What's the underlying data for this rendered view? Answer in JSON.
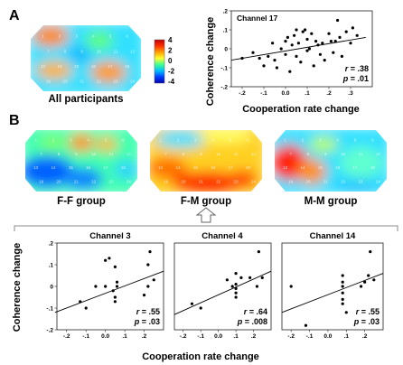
{
  "panels": {
    "a": {
      "letter": "A",
      "map_caption": "All participants",
      "map_channels": [
        "1",
        "2",
        "3",
        "4",
        "5",
        "6",
        "7",
        "8",
        "9",
        "10",
        "11",
        "12",
        "13",
        "14",
        "15",
        "16",
        "17",
        "18",
        "19",
        "20",
        "21",
        "22",
        "23",
        "24"
      ]
    },
    "b": {
      "letter": "B",
      "maps": [
        {
          "caption": "F-F group"
        },
        {
          "caption": "F-M group"
        },
        {
          "caption": "M-M group"
        }
      ],
      "bottom_labels": {
        "ylabel": "Coherence change",
        "xlabel": "Cooperation rate change"
      }
    }
  },
  "colorbar": {
    "ticks": [
      "4",
      "2",
      "0",
      "-2",
      "-4"
    ],
    "colors": [
      "#c00000",
      "#ff3000",
      "#ffa000",
      "#ffff30",
      "#40ff90",
      "#00c0ff",
      "#0040ff",
      "#0000b0"
    ]
  },
  "map_channel_labels": [
    "1",
    "2",
    "3",
    "4",
    "5",
    "6",
    "7",
    "8",
    "9",
    "10",
    "11",
    "12",
    "13",
    "14",
    "15",
    "16",
    "17",
    "18",
    "19",
    "20",
    "21",
    "22",
    "23",
    "24"
  ],
  "chart_data": [
    {
      "type": "scatter",
      "title": "Channel 17",
      "xlabel": "Cooperation rate change",
      "ylabel": "Coherence change",
      "xlim": [
        -0.25,
        0.4
      ],
      "ylim": [
        -0.2,
        0.2
      ],
      "xticks": [
        -0.2,
        -0.1,
        0.0,
        0.1,
        0.2,
        0.3
      ],
      "xtick_labels": [
        "-.2",
        "-.1",
        "0.0",
        ".1",
        ".2",
        ".3"
      ],
      "yticks": [
        -0.2,
        -0.1,
        0.0,
        0.1,
        0.2
      ],
      "ytick_labels": [
        "-.2",
        "-.1",
        "0",
        ".1",
        ".2"
      ],
      "points": [
        [
          -0.2,
          -0.05
        ],
        [
          -0.15,
          -0.02
        ],
        [
          -0.12,
          -0.05
        ],
        [
          -0.1,
          -0.09
        ],
        [
          -0.08,
          -0.04
        ],
        [
          -0.05,
          -0.06
        ],
        [
          -0.04,
          -0.1
        ],
        [
          -0.02,
          0.0
        ],
        [
          0.0,
          0.04
        ],
        [
          0.0,
          -0.03
        ],
        [
          0.01,
          0.06
        ],
        [
          0.02,
          -0.12
        ],
        [
          0.03,
          0.02
        ],
        [
          0.04,
          0.07
        ],
        [
          0.05,
          -0.04
        ],
        [
          0.06,
          0.03
        ],
        [
          0.07,
          -0.07
        ],
        [
          0.08,
          0.09
        ],
        [
          0.09,
          0.1
        ],
        [
          0.1,
          -0.01
        ],
        [
          0.1,
          0.05
        ],
        [
          0.11,
          0.0
        ],
        [
          0.12,
          0.08
        ],
        [
          0.13,
          -0.09
        ],
        [
          0.14,
          0.04
        ],
        [
          0.15,
          0.02
        ],
        [
          0.16,
          -0.03
        ],
        [
          0.17,
          0.03
        ],
        [
          0.18,
          -0.06
        ],
        [
          0.2,
          0.08
        ],
        [
          0.21,
          0.04
        ],
        [
          0.22,
          -0.02
        ],
        [
          0.23,
          0.04
        ],
        [
          0.24,
          0.15
        ],
        [
          0.25,
          0.06
        ],
        [
          0.26,
          -0.04
        ],
        [
          0.28,
          0.09
        ],
        [
          0.3,
          0.03
        ],
        [
          0.31,
          0.11
        ],
        [
          0.33,
          0.07
        ],
        [
          -0.06,
          0.03
        ],
        [
          0.05,
          0.1
        ]
      ],
      "fit_line": [
        [
          -0.25,
          -0.06
        ],
        [
          0.37,
          0.06
        ]
      ],
      "stats": {
        "r": ".38",
        "p": ".01"
      }
    },
    {
      "type": "scatter",
      "title": "Channel 3",
      "xlim": [
        -0.25,
        0.3
      ],
      "ylim": [
        -0.2,
        0.2
      ],
      "xticks": [
        -0.2,
        -0.1,
        0.0,
        0.1,
        0.2
      ],
      "xtick_labels": [
        "-.2",
        "-.1",
        "0.0",
        ".1",
        ".2"
      ],
      "yticks": [
        -0.2,
        -0.1,
        0.0,
        0.1,
        0.2
      ],
      "ytick_labels": [
        "-.2",
        "-.1",
        "0",
        ".1",
        ".2"
      ],
      "points": [
        [
          -0.13,
          -0.07
        ],
        [
          -0.1,
          -0.1
        ],
        [
          -0.05,
          0.0
        ],
        [
          0.0,
          0.0
        ],
        [
          0.0,
          0.12
        ],
        [
          0.02,
          0.13
        ],
        [
          0.04,
          -0.02
        ],
        [
          0.05,
          -0.05
        ],
        [
          0.05,
          -0.07
        ],
        [
          0.05,
          0.09
        ],
        [
          0.06,
          0.02
        ],
        [
          0.06,
          0.0
        ],
        [
          0.2,
          -0.04
        ],
        [
          0.22,
          0.0
        ],
        [
          0.22,
          0.1
        ],
        [
          0.25,
          0.03
        ],
        [
          0.23,
          0.16
        ]
      ],
      "fit_line": [
        [
          -0.26,
          -0.12
        ],
        [
          0.3,
          0.07
        ]
      ],
      "stats": {
        "r": ".55",
        "p": ".03"
      }
    },
    {
      "type": "scatter",
      "title": "Channel 4",
      "xlim": [
        -0.25,
        0.3
      ],
      "ylim": [
        -0.2,
        0.2
      ],
      "xticks": [
        -0.2,
        -0.1,
        0.0,
        0.1,
        0.2
      ],
      "xtick_labels": [
        "-.2",
        "-.1",
        "0.0",
        ".1",
        ".2"
      ],
      "points": [
        [
          -0.15,
          -0.08
        ],
        [
          -0.1,
          -0.1
        ],
        [
          0.05,
          0.03
        ],
        [
          0.08,
          0.0
        ],
        [
          0.1,
          -0.03
        ],
        [
          0.1,
          -0.01
        ],
        [
          0.1,
          0.01
        ],
        [
          0.1,
          -0.05
        ],
        [
          0.1,
          0.06
        ],
        [
          0.13,
          0.04
        ],
        [
          0.18,
          0.04
        ],
        [
          0.22,
          0.0
        ],
        [
          0.23,
          0.16
        ],
        [
          0.25,
          0.04
        ]
      ],
      "fit_line": [
        [
          -0.25,
          -0.13
        ],
        [
          0.3,
          0.07
        ]
      ],
      "stats": {
        "r": ".64",
        "p": ".008"
      }
    },
    {
      "type": "scatter",
      "title": "Channel 14",
      "xlim": [
        -0.25,
        0.3
      ],
      "ylim": [
        -0.2,
        0.2
      ],
      "xticks": [
        -0.2,
        -0.1,
        0.0,
        0.1,
        0.2
      ],
      "xtick_labels": [
        "-.2",
        "-.1",
        "0.0",
        ".1",
        ".2"
      ],
      "points": [
        [
          -0.2,
          0.0
        ],
        [
          -0.12,
          -0.18
        ],
        [
          0.08,
          0.02
        ],
        [
          0.08,
          0.05
        ],
        [
          0.08,
          0.0
        ],
        [
          0.08,
          -0.03
        ],
        [
          0.08,
          -0.06
        ],
        [
          0.08,
          -0.08
        ],
        [
          0.1,
          -0.12
        ],
        [
          0.18,
          0.0
        ],
        [
          0.2,
          0.02
        ],
        [
          0.22,
          0.05
        ],
        [
          0.23,
          0.16
        ],
        [
          0.25,
          0.03
        ]
      ],
      "fit_line": [
        [
          -0.25,
          -0.12
        ],
        [
          0.3,
          0.06
        ]
      ],
      "stats": {
        "r": ".55",
        "p": ".03"
      }
    }
  ]
}
